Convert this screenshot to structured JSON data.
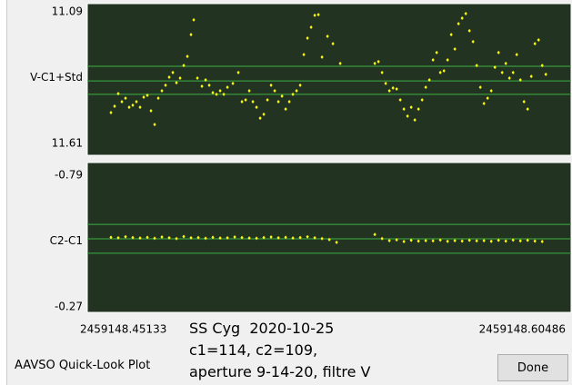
{
  "window": {
    "caption_lines": [
      "SS Cyg  2020-10-25",
      "c1=114, c2=109,",
      "aperture 9-14-20, filtre V"
    ],
    "app_label": "AAVSO Quick-Look Plot",
    "button": "Done"
  },
  "chart_data": [
    {
      "type": "scatter",
      "ylabel": "V-C1+Std",
      "ylim": [
        11.61,
        11.09
      ],
      "yticks": [
        11.09,
        11.61
      ],
      "xlim": [
        2459148.45133,
        2459148.60486
      ],
      "hlines": [
        11.305,
        11.363,
        11.416
      ],
      "hline_color": "#3cb043",
      "x": [
        2459148.45133,
        2459148.45261,
        2459148.45389,
        2459148.45517,
        2459148.45645,
        2459148.45773,
        2459148.45901,
        2459148.46029,
        2459148.46157,
        2459148.46285,
        2459148.46413,
        2459148.46541,
        2459148.46669,
        2459148.46797,
        2459148.46925,
        2459148.47053,
        2459148.47181,
        2459148.47309,
        2459148.47437,
        2459148.47565,
        2459148.47693,
        2459148.47821,
        2459148.47949,
        2459148.48045,
        2459148.48173,
        2459148.48333,
        2459148.48461,
        2459148.48589,
        2459148.48717,
        2459148.48845,
        2459148.48973,
        2459148.49101,
        2459148.49229,
        2459148.49421,
        2459148.49613,
        2459148.49741,
        2459148.49869,
        2459148.49997,
        2459148.50125,
        2459148.50253,
        2459148.50381,
        2459148.50509,
        2459148.50637,
        2459148.50765,
        2459148.50893,
        2459148.51021,
        2459148.51149,
        2459148.51277,
        2459148.51405,
        2459148.51533,
        2459148.51661,
        2459148.51789,
        2459148.51917,
        2459148.52045,
        2459148.52173,
        2459148.52301,
        2459148.52429,
        2459148.52557,
        2459148.52749,
        2459148.52941,
        2459148.53197,
        2459148.54413,
        2459148.54541,
        2459148.54669,
        2459148.54797,
        2459148.54925,
        2459148.55053,
        2459148.55181,
        2459148.55309,
        2459148.55437,
        2459148.55565,
        2459148.55693,
        2459148.55821,
        2459148.55949,
        2459148.56077,
        2459148.56205,
        2459148.56333,
        2459148.56461,
        2459148.56589,
        2459148.56717,
        2459148.56845,
        2459148.56973,
        2459148.57101,
        2459148.57229,
        2459148.57357,
        2459148.57485,
        2459148.57613,
        2459148.57741,
        2459148.57869,
        2459148.57997,
        2459148.58125,
        2459148.58253,
        2459148.58381,
        2459148.58509,
        2459148.58637,
        2459148.58765,
        2459148.58893,
        2459148.59021,
        2459148.59149,
        2459148.59277,
        2459148.59405,
        2459148.59533,
        2459148.59661,
        2459148.59789,
        2459148.59917,
        2459148.60045,
        2459148.60173,
        2459148.60301,
        2459148.60429
      ],
      "series": [
        {
          "color": "#ffff00",
          "values": [
            11.488,
            11.463,
            11.413,
            11.445,
            11.431,
            11.467,
            11.459,
            11.445,
            11.467,
            11.427,
            11.42,
            11.481,
            11.535,
            11.431,
            11.402,
            11.38,
            11.348,
            11.33,
            11.37,
            11.352,
            11.302,
            11.266,
            11.18,
            11.122,
            11.352,
            11.384,
            11.359,
            11.38,
            11.409,
            11.416,
            11.402,
            11.416,
            11.388,
            11.373,
            11.33,
            11.445,
            11.438,
            11.402,
            11.445,
            11.467,
            11.51,
            11.495,
            11.438,
            11.38,
            11.402,
            11.445,
            11.423,
            11.474,
            11.445,
            11.416,
            11.402,
            11.38,
            11.259,
            11.194,
            11.151,
            11.104,
            11.101,
            11.269,
            11.187,
            11.216,
            11.294,
            11.294,
            11.287,
            11.33,
            11.373,
            11.402,
            11.391,
            11.395,
            11.438,
            11.474,
            11.502,
            11.467,
            11.517,
            11.474,
            11.438,
            11.388,
            11.359,
            11.28,
            11.251,
            11.33,
            11.323,
            11.28,
            11.18,
            11.237,
            11.137,
            11.115,
            11.097,
            11.165,
            11.208,
            11.302,
            11.388,
            11.452,
            11.431,
            11.402,
            11.309,
            11.251,
            11.33,
            11.294,
            11.352,
            11.33,
            11.259,
            11.359,
            11.445,
            11.474,
            11.345,
            11.216,
            11.201,
            11.302,
            11.337
          ]
        }
      ]
    },
    {
      "type": "scatter",
      "ylabel": "C2-C1",
      "ylim": [
        -0.27,
        -0.79
      ],
      "yticks": [
        -0.79,
        -0.27
      ],
      "xlim": [
        2459148.45133,
        2459148.60486
      ],
      "xticks": [
        2459148.45133,
        2459148.60486
      ],
      "hlines": [
        -0.596,
        -0.539,
        -0.482
      ],
      "hline_color": "#3cb043",
      "x": [
        2459148.45133,
        2459148.45389,
        2459148.45645,
        2459148.45901,
        2459148.46157,
        2459148.46413,
        2459148.46669,
        2459148.46925,
        2459148.47181,
        2459148.47437,
        2459148.47693,
        2459148.47949,
        2459148.48205,
        2459148.48461,
        2459148.48717,
        2459148.48973,
        2459148.49229,
        2459148.49485,
        2459148.49741,
        2459148.49997,
        2459148.50253,
        2459148.50509,
        2459148.50765,
        2459148.51021,
        2459148.51277,
        2459148.51533,
        2459148.51789,
        2459148.52045,
        2459148.52301,
        2459148.52557,
        2459148.52813,
        2459148.53069,
        2459148.54413,
        2459148.54669,
        2459148.54925,
        2459148.55181,
        2459148.55437,
        2459148.55693,
        2459148.55949,
        2459148.56205,
        2459148.56461,
        2459148.56717,
        2459148.56973,
        2459148.57229,
        2459148.57485,
        2459148.57741,
        2459148.57997,
        2459148.58253,
        2459148.58509,
        2459148.58765,
        2459148.59021,
        2459148.59277,
        2459148.59533,
        2459148.59789,
        2459148.60045,
        2459148.60301
      ],
      "series": [
        {
          "color": "#ffff00",
          "values": [
            -0.545,
            -0.543,
            -0.547,
            -0.544,
            -0.542,
            -0.545,
            -0.541,
            -0.546,
            -0.543,
            -0.54,
            -0.548,
            -0.543,
            -0.544,
            -0.541,
            -0.545,
            -0.542,
            -0.543,
            -0.546,
            -0.544,
            -0.542,
            -0.541,
            -0.544,
            -0.546,
            -0.543,
            -0.545,
            -0.542,
            -0.544,
            -0.547,
            -0.543,
            -0.54,
            -0.536,
            -0.525,
            -0.556,
            -0.54,
            -0.532,
            -0.535,
            -0.528,
            -0.533,
            -0.53,
            -0.532,
            -0.531,
            -0.534,
            -0.529,
            -0.532,
            -0.53,
            -0.533,
            -0.531,
            -0.532,
            -0.529,
            -0.533,
            -0.53,
            -0.534,
            -0.531,
            -0.533,
            -0.53,
            -0.528
          ]
        }
      ]
    }
  ]
}
